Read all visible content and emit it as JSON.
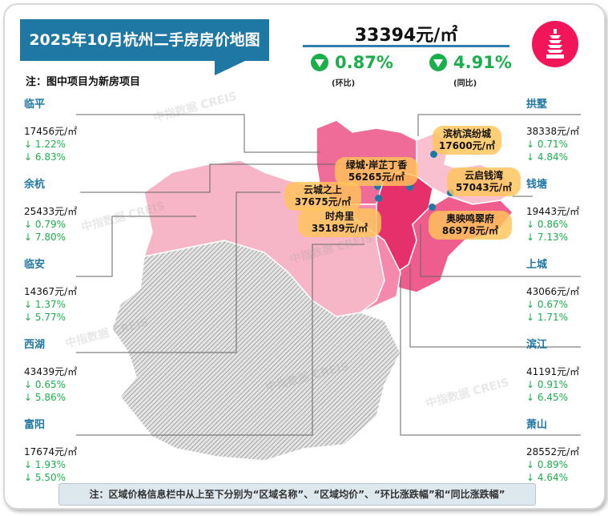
{
  "title": "2025年10月杭州二手房房价地图",
  "note": "注：图中项目为新房项目",
  "city_avg": {
    "price": "33394元/㎡",
    "mom": "0.87%",
    "mom_label": "(环比)",
    "yoy": "4.91%",
    "yoy_label": "(同比)",
    "trend": "down"
  },
  "colors": {
    "accent": "#1f77a3",
    "down": "#1bae4c",
    "logo": "#f2155a"
  },
  "districts_left": [
    {
      "name": "临平",
      "price": "17456元/㎡",
      "mom": "↓ 1.22%",
      "yoy": "↓ 6.83%"
    },
    {
      "name": "余杭",
      "price": "25433元/㎡",
      "mom": "↓ 0.79%",
      "yoy": "↓ 7.80%"
    },
    {
      "name": "临安",
      "price": "14367元/㎡",
      "mom": "↓ 1.37%",
      "yoy": "↓ 5.77%"
    },
    {
      "name": "西湖",
      "price": "43439元/㎡",
      "mom": "↓ 0.65%",
      "yoy": "↓ 5.86%"
    },
    {
      "name": "富阳",
      "price": "17674元/㎡",
      "mom": "↓ 1.93%",
      "yoy": "↓ 5.50%"
    }
  ],
  "districts_right": [
    {
      "name": "拱墅",
      "price": "38338元/㎡",
      "mom": "↓ 0.71%",
      "yoy": "↓ 4.84%"
    },
    {
      "name": "钱塘",
      "price": "19443元/㎡",
      "mom": "↓ 0.86%",
      "yoy": "↓ 7.13%"
    },
    {
      "name": "上城",
      "price": "43066元/㎡",
      "mom": "↓ 0.67%",
      "yoy": "↓ 1.71%"
    },
    {
      "name": "滨江",
      "price": "41191元/㎡",
      "mom": "↓ 0.91%",
      "yoy": "↓ 6.45%"
    },
    {
      "name": "萧山",
      "price": "28552元/㎡",
      "mom": "↓ 0.89%",
      "yoy": "↓ 4.64%"
    }
  ],
  "projects": [
    {
      "name": "滨杭滨纷城",
      "price": "17600元/㎡"
    },
    {
      "name": "绿城·岸芷丁香",
      "price": "56265元/㎡"
    },
    {
      "name": "云启钱湾",
      "price": "57043元/㎡"
    },
    {
      "name": "云城之上",
      "price": "37675元/㎡"
    },
    {
      "name": "时舟里",
      "price": "35189元/㎡"
    },
    {
      "name": "奥映鸣翠府",
      "price": "86978元/㎡"
    }
  ],
  "watermark": "中指数据 CREIS",
  "footer": "注：区域价格信息栏中从上至下分别为“区域名称”、“区域均价”、“环比涨跌幅”和“同比涨跌幅”"
}
